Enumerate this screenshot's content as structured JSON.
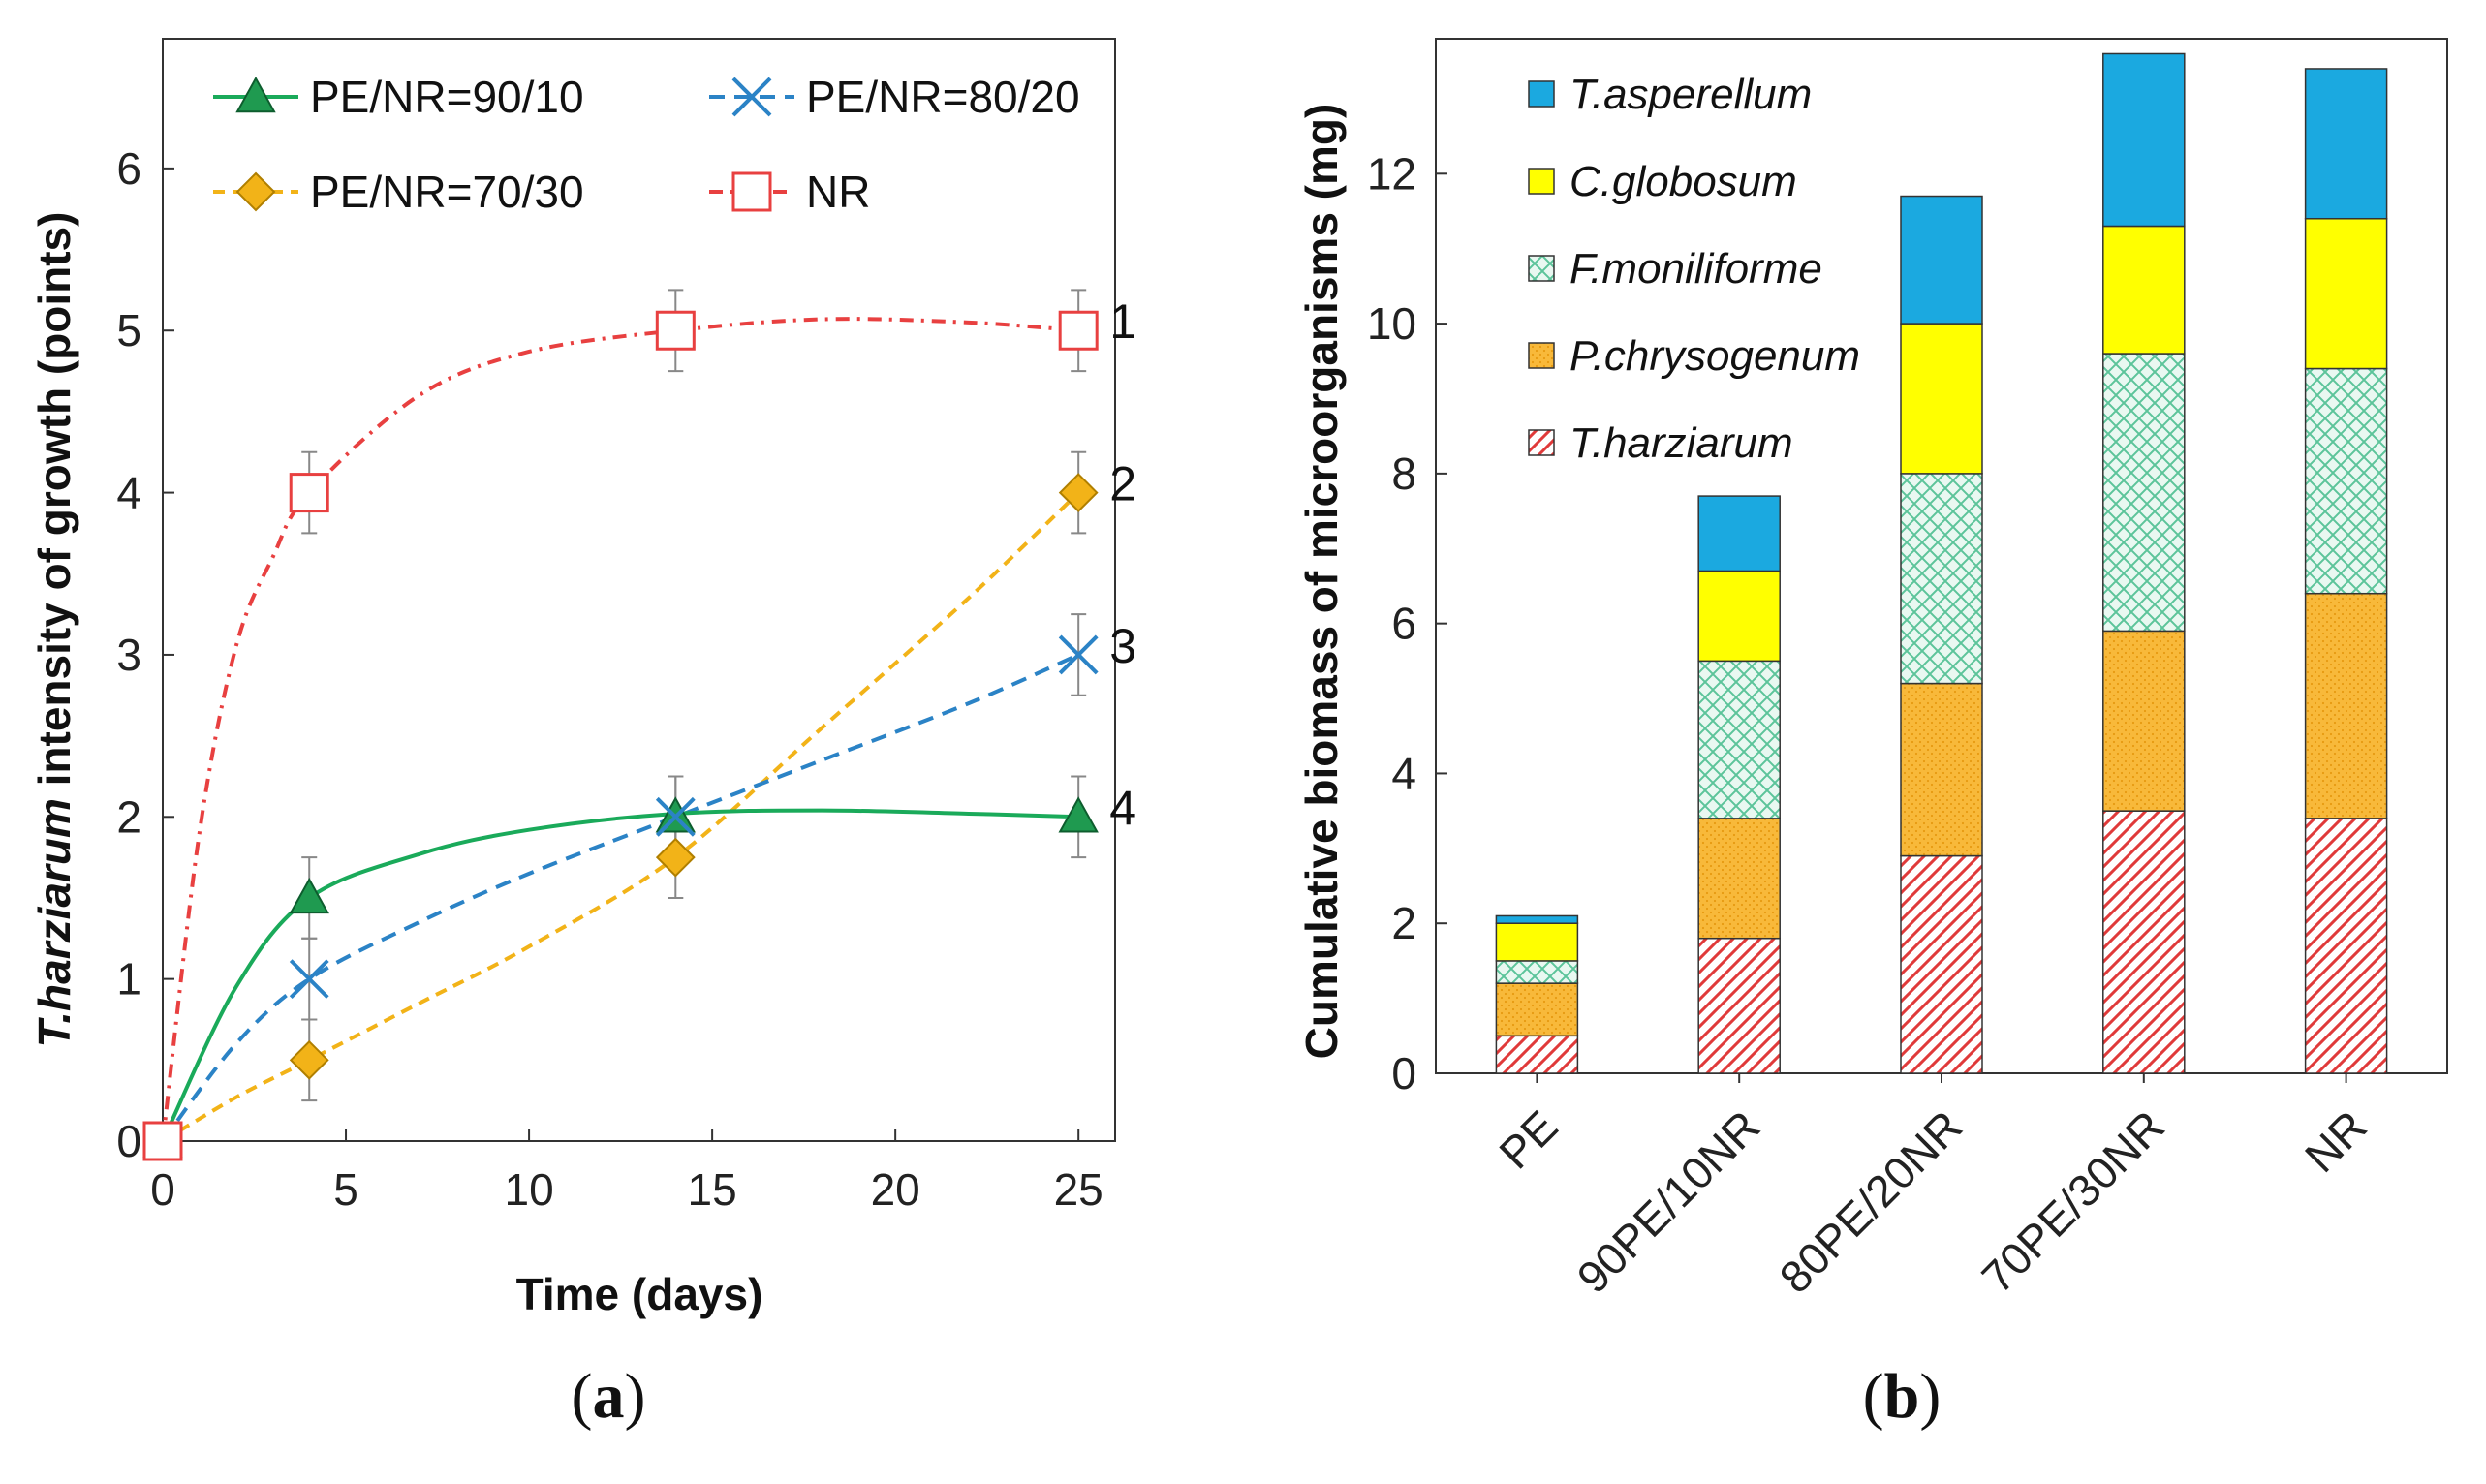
{
  "chart_data": [
    {
      "type": "line",
      "panel_label": "(a)",
      "panel_letter": "a",
      "ylabel_italic": "T.harziarum",
      "ylabel_rest": " intensity of growth (points)",
      "xlabel": "Time (days)",
      "xlim": [
        0,
        26
      ],
      "ylim": [
        0,
        6.8
      ],
      "xticks": [
        0,
        5,
        10,
        15,
        20,
        25
      ],
      "yticks": [
        0,
        1,
        2,
        3,
        4,
        5,
        6
      ],
      "series": [
        {
          "name": "PE/NR=90/10",
          "label_num": "4",
          "color": "#1aaa5a",
          "marker": "triangle",
          "dash": "solid",
          "x": [
            0,
            4,
            14,
            25
          ],
          "y": [
            0,
            1.5,
            2,
            2
          ],
          "err": [
            0,
            0.25,
            0.25,
            0.25
          ],
          "curve": [
            [
              0,
              0
            ],
            [
              2,
              0.95
            ],
            [
              4,
              1.5
            ],
            [
              7,
              1.77
            ],
            [
              10,
              1.92
            ],
            [
              14,
              2.02
            ],
            [
              18,
              2.04
            ],
            [
              22,
              2.02
            ],
            [
              25,
              2.0
            ]
          ]
        },
        {
          "name": "PE/NR=80/20",
          "label_num": "3",
          "color": "#2b83c6",
          "marker": "x",
          "dash": "16,10",
          "x": [
            0,
            4,
            14,
            25
          ],
          "y": [
            0,
            1,
            2,
            3
          ],
          "err": [
            0,
            0.25,
            0.25,
            0.25
          ],
          "curve": [
            [
              0,
              0
            ],
            [
              2,
              0.6
            ],
            [
              4,
              1.0
            ],
            [
              7,
              1.35
            ],
            [
              10,
              1.65
            ],
            [
              14,
              2.0
            ],
            [
              18,
              2.35
            ],
            [
              22,
              2.7
            ],
            [
              25,
              3.0
            ]
          ]
        },
        {
          "name": "PE/NR=70/30",
          "label_num": "2",
          "color": "#f2b318",
          "marker": "diamond",
          "dash": "12,8",
          "x": [
            0,
            4,
            14,
            25
          ],
          "y": [
            0,
            0.5,
            1.75,
            4
          ],
          "err": [
            0,
            0.25,
            0.25,
            0.25
          ],
          "curve": [
            [
              0,
              0
            ],
            [
              2,
              0.27
            ],
            [
              4,
              0.5
            ],
            [
              7,
              0.85
            ],
            [
              10,
              1.2
            ],
            [
              14,
              1.75
            ],
            [
              18,
              2.55
            ],
            [
              22,
              3.35
            ],
            [
              25,
              4.0
            ]
          ]
        },
        {
          "name": "NR",
          "label_num": "1",
          "color": "#e84040",
          "marker": "square",
          "dash": "14,8,3,8",
          "x": [
            0,
            4,
            14,
            25
          ],
          "y": [
            0,
            4,
            5,
            5
          ],
          "err": [
            0,
            0.25,
            0.25,
            0.25
          ],
          "curve": [
            [
              0,
              0
            ],
            [
              1,
              1.9
            ],
            [
              2,
              3.05
            ],
            [
              3,
              3.6
            ],
            [
              4,
              4.0
            ],
            [
              7,
              4.6
            ],
            [
              10,
              4.87
            ],
            [
              14,
              5.0
            ],
            [
              18,
              5.07
            ],
            [
              22,
              5.05
            ],
            [
              25,
              5.0
            ]
          ]
        }
      ]
    },
    {
      "type": "bar",
      "stacked": true,
      "panel_label": "(b)",
      "panel_letter": "b",
      "ylabel": "Cumulative biomass of microorganisms (mg)",
      "categories": [
        "PE",
        "90PE/10NR",
        "80PE/20NR",
        "70PE/30NR",
        "NR"
      ],
      "ylim": [
        0,
        13.8
      ],
      "yticks": [
        0,
        2,
        4,
        6,
        8,
        10,
        12
      ],
      "series": [
        {
          "name": "T.harziarum",
          "color": "#f4a0a0",
          "pattern": "hatch",
          "values": [
            0.5,
            1.8,
            2.9,
            3.5,
            3.4
          ]
        },
        {
          "name": "P.chrysogenum",
          "color": "#f8b93a",
          "pattern": "dots",
          "values": [
            0.7,
            1.6,
            2.3,
            2.4,
            3.0
          ]
        },
        {
          "name": "F.moniliforme",
          "color": "#bfe8d8",
          "pattern": "cross",
          "values": [
            0.3,
            2.1,
            2.8,
            3.7,
            3.0
          ]
        },
        {
          "name": "C.globosum",
          "color": "#ffff00",
          "pattern": "none",
          "values": [
            0.5,
            1.2,
            2.0,
            1.7,
            2.0
          ]
        },
        {
          "name": "T.asperellum",
          "color": "#1ba9e0",
          "pattern": "none",
          "values": [
            0.1,
            1.0,
            1.7,
            2.3,
            2.0
          ]
        }
      ]
    }
  ]
}
